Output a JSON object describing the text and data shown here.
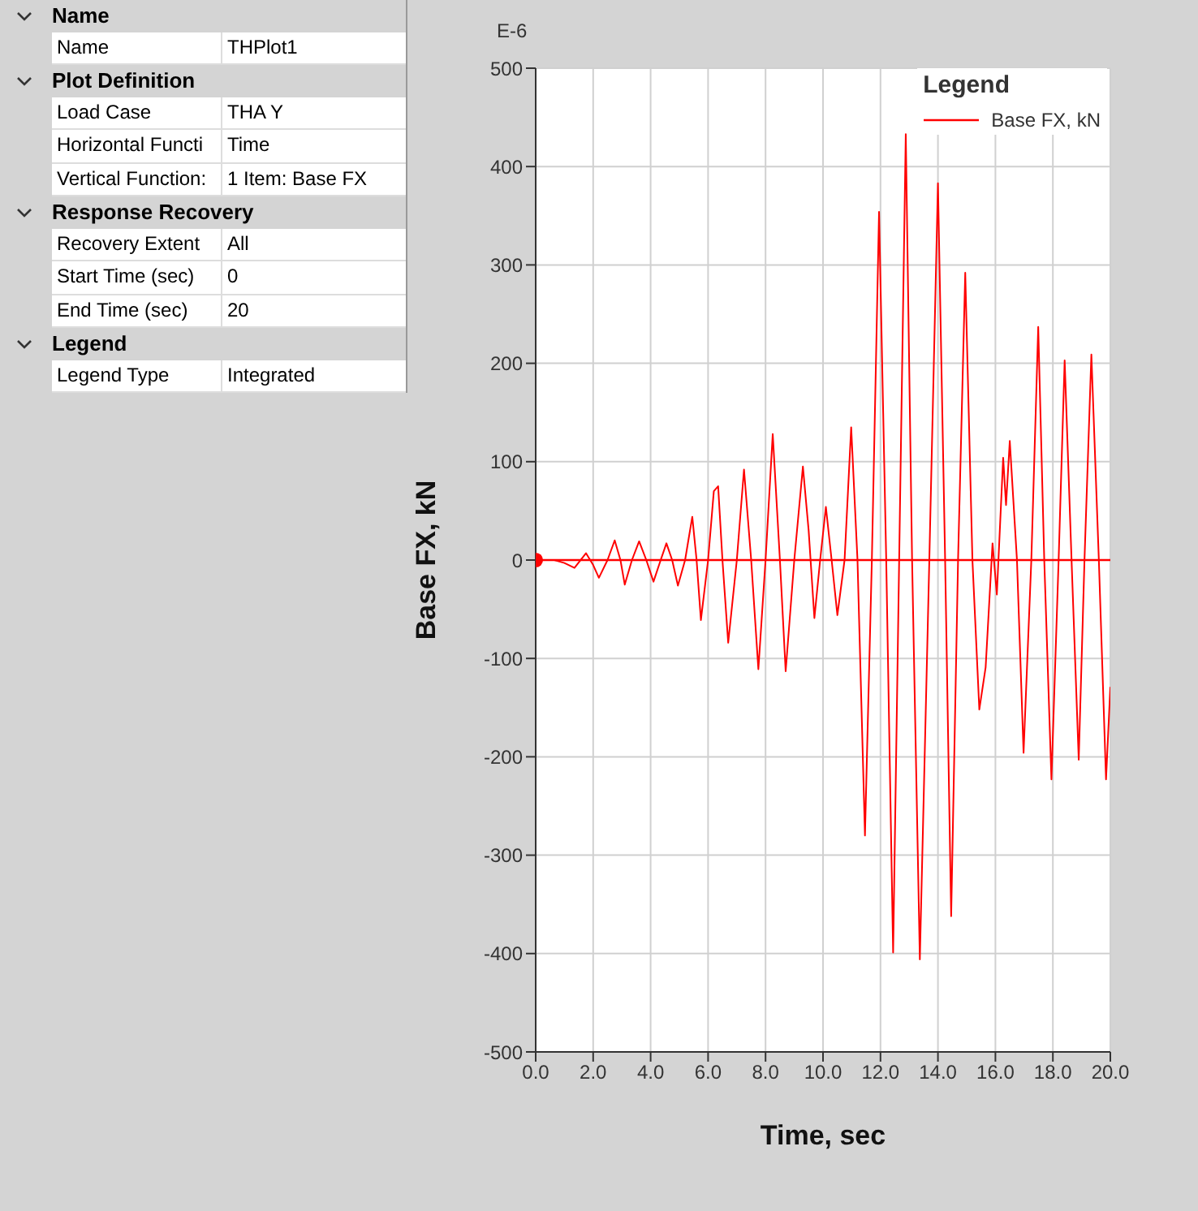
{
  "chart_data": [
    {
      "type": "other",
      "y_categories": [
        "Name",
        "Name",
        "Plot Definition",
        "Load Case",
        "Horizontal Functi",
        "Vertical Function:",
        "Response Recovery",
        "Recovery Extent",
        "Start Time (sec)",
        "End Time (sec)",
        "Legend",
        "Legend Type"
      ],
      "y2_categories": [
        null,
        "THPlot1",
        null,
        "THA Y",
        "Time",
        "1 Item: Base FX",
        null,
        "All",
        "0",
        "20",
        null,
        "Integrated"
      ]
    },
    {
      "type": "line",
      "xlabel": "Time,  sec",
      "ylabel": "Base FX,  kN",
      "legend_title": "Legend",
      "legend": "top right",
      "grid": true,
      "annotations": [
        "E-6"
      ],
      "xlim": [
        0,
        20
      ],
      "xticks": [
        {
          "value": 0,
          "label": "0.0"
        },
        {
          "value": 2,
          "label": "2.0"
        },
        {
          "value": 4,
          "label": "4.0"
        },
        {
          "value": 6,
          "label": "6.0"
        },
        {
          "value": 8,
          "label": "8.0"
        },
        {
          "value": 10,
          "label": "10.0"
        },
        {
          "value": 12,
          "label": "12.0"
        },
        {
          "value": 14,
          "label": "14.0"
        },
        {
          "value": 16,
          "label": "16.0"
        },
        {
          "value": 18,
          "label": "18.0"
        },
        {
          "value": 20,
          "label": "20.0"
        }
      ],
      "ylim": [
        -500,
        500
      ],
      "yticks": [
        -500,
        -400,
        -300,
        -200,
        -100,
        0,
        100,
        200,
        300,
        400,
        500
      ],
      "ref_lines": [
        {
          "axis": "y",
          "value": 0,
          "color": "#ff0000"
        }
      ],
      "series": [
        {
          "name": "Base FX, kN",
          "type": "line",
          "marker": "none",
          "color": "#ff0000",
          "x": [
            0,
            0.65,
            1.0,
            1.35,
            1.75,
            2.0,
            2.2,
            2.5,
            2.75,
            2.95,
            3.1,
            3.35,
            3.6,
            3.85,
            4.1,
            4.35,
            4.55,
            4.75,
            4.95,
            5.2,
            5.45,
            5.6,
            5.75,
            6.0,
            6.2,
            6.35,
            6.5,
            6.7,
            7.0,
            7.25,
            7.5,
            7.75,
            8.0,
            8.25,
            8.5,
            8.7,
            9.0,
            9.3,
            9.5,
            9.7,
            9.9,
            10.1,
            10.3,
            10.5,
            10.75,
            10.98,
            11.2,
            11.46,
            11.7,
            11.95,
            12.2,
            12.44,
            12.65,
            12.88,
            13.1,
            13.37,
            13.7,
            14.0,
            14.25,
            14.46,
            14.7,
            14.95,
            15.2,
            15.44,
            15.66,
            15.9,
            16.05,
            16.27,
            16.37,
            16.5,
            16.75,
            16.98,
            17.25,
            17.49,
            17.7,
            17.95,
            18.2,
            18.41,
            18.65,
            18.9,
            19.1,
            19.34,
            19.6,
            19.85,
            20.0
          ],
          "values": [
            0,
            0,
            -3,
            -8,
            7,
            -5,
            -18,
            0,
            20,
            0,
            -25,
            0,
            19,
            0,
            -22,
            0,
            17,
            0,
            -26,
            0,
            44,
            0,
            -61,
            0,
            70,
            75,
            0,
            -84,
            0,
            92,
            0,
            -111,
            0,
            128,
            0,
            -113,
            0,
            95,
            30,
            -59,
            0,
            54,
            0,
            -56,
            0,
            135,
            0,
            -280,
            0,
            354,
            0,
            -399,
            0,
            433,
            0,
            -406,
            0,
            383,
            0,
            -362,
            0,
            292,
            0,
            -152,
            -109,
            17,
            -35,
            104,
            56,
            121,
            0,
            -196,
            0,
            237,
            0,
            -223,
            0,
            203,
            0,
            -203,
            0,
            209,
            0,
            -223,
            -129
          ]
        },
        {
          "type": "scatter",
          "marker": "circle",
          "color": "#ff0000",
          "x": [
            0
          ],
          "values": [
            0
          ]
        }
      ]
    }
  ]
}
